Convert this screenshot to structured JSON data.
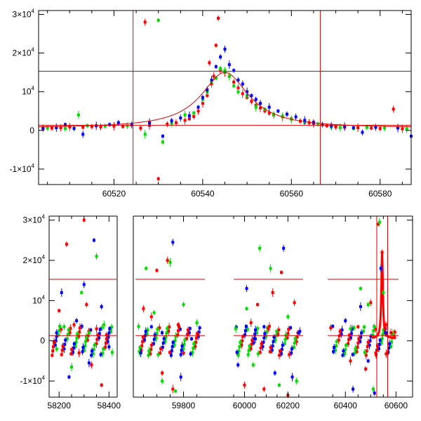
{
  "colors": {
    "red": "#ff0000",
    "green": "#00dd00",
    "blue": "#0000ff",
    "guide": "#dd0000",
    "frame": "#000000"
  },
  "chart_data": [
    {
      "type": "scatter",
      "panel": "top",
      "title": "",
      "xlabel": "",
      "ylabel": "",
      "xlim": [
        60503,
        60587
      ],
      "ylim": [
        -14000,
        31000
      ],
      "x_ticks": [
        60520,
        60540,
        60560,
        60580
      ],
      "x_tick_labels": [
        "60520",
        "60540",
        "60560",
        "60580"
      ],
      "y_ticks": [
        -10000,
        0,
        10000,
        20000,
        30000
      ],
      "y_tick_labels": [
        {
          "base": "-1×10",
          "exp": "4"
        },
        {
          "base": "0",
          "exp": ""
        },
        {
          "base": "10",
          "exp": "4"
        },
        {
          "base": "2×10",
          "exp": "4"
        },
        {
          "base": "3×10",
          "exp": "4"
        }
      ],
      "reference_lines": {
        "horizontal": [
          1300,
          15300
        ],
        "vertical": [
          60524.3,
          60566.5
        ]
      },
      "model_curve": {
        "peak_x": 60545,
        "peak_y": 15000,
        "baseline": 600
      },
      "grid": false,
      "legend": "none",
      "series": [
        {
          "color": "red",
          "points": [
            [
              60504,
              500
            ],
            [
              60506,
              600
            ],
            [
              60508,
              700
            ],
            [
              60510,
              900
            ],
            [
              60513,
              800
            ],
            [
              60515,
              1000
            ],
            [
              60517,
              900
            ],
            [
              60520,
              1100
            ],
            [
              60522,
              1000
            ],
            [
              60526,
              600
            ],
            [
              60527,
              28000
            ],
            [
              60528,
              1300
            ],
            [
              60530,
              -12500
            ],
            [
              60532,
              1600
            ],
            [
              60534,
              2000
            ],
            [
              60536,
              2600
            ],
            [
              60537,
              3000
            ],
            [
              60538,
              3600
            ],
            [
              60539,
              5000
            ],
            [
              60540,
              7000
            ],
            [
              60541,
              9000
            ],
            [
              60541.5,
              17500
            ],
            [
              60542,
              12000
            ],
            [
              60542.5,
              14000
            ],
            [
              60543,
              22000
            ],
            [
              60543.5,
              29000
            ],
            [
              60544,
              15500
            ],
            [
              60545,
              15000
            ],
            [
              60546,
              14000
            ],
            [
              60547,
              12500
            ],
            [
              60548,
              11000
            ],
            [
              60549,
              9500
            ],
            [
              60550,
              8500
            ],
            [
              60551,
              7500
            ],
            [
              60552,
              6500
            ],
            [
              60553,
              5800
            ],
            [
              60554,
              5000
            ],
            [
              60555,
              4500
            ],
            [
              60556,
              4000
            ],
            [
              60558,
              3500
            ],
            [
              60560,
              3000
            ],
            [
              60562,
              2400
            ],
            [
              60564,
              2000
            ],
            [
              60565,
              1800
            ],
            [
              60568,
              1200
            ],
            [
              60570,
              900
            ],
            [
              60572,
              800
            ],
            [
              60575,
              700
            ],
            [
              60578,
              600
            ],
            [
              60580,
              500
            ],
            [
              60583,
              5500
            ],
            [
              60585,
              400
            ]
          ]
        },
        {
          "color": "green",
          "points": [
            [
              60505,
              600
            ],
            [
              60509,
              500
            ],
            [
              60512,
              4000
            ],
            [
              60514,
              1200
            ],
            [
              60518,
              1100
            ],
            [
              60523,
              1200
            ],
            [
              60527,
              -1000
            ],
            [
              60530,
              28500
            ],
            [
              60531,
              -3000
            ],
            [
              60533,
              1800
            ],
            [
              60536,
              4000
            ],
            [
              60538,
              4500
            ],
            [
              60540,
              8000
            ],
            [
              60541,
              10000
            ],
            [
              60542,
              12500
            ],
            [
              60543,
              13500
            ],
            [
              60544,
              16000
            ],
            [
              60545,
              15500
            ],
            [
              60546,
              14000
            ],
            [
              60547,
              11500
            ],
            [
              60548,
              10000
            ],
            [
              60550,
              9000
            ],
            [
              60552,
              6000
            ],
            [
              60554,
              5500
            ],
            [
              60556,
              4200
            ],
            [
              60558,
              3700
            ],
            [
              60560,
              2800
            ],
            [
              60563,
              2000
            ],
            [
              60566,
              1600
            ],
            [
              60569,
              900
            ],
            [
              60571,
              700
            ],
            [
              60574,
              500
            ],
            [
              60577,
              800
            ],
            [
              60581,
              600
            ],
            [
              60586,
              400
            ]
          ]
        },
        {
          "color": "blue",
          "points": [
            [
              60504,
              600
            ],
            [
              60507,
              700
            ],
            [
              60509,
              1500
            ],
            [
              60511,
              500
            ],
            [
              60513,
              -1000
            ],
            [
              60516,
              1200
            ],
            [
              60519,
              1500
            ],
            [
              60521,
              2000
            ],
            [
              60524,
              1400
            ],
            [
              60528,
              2000
            ],
            [
              60531,
              -1500
            ],
            [
              60533,
              2500
            ],
            [
              60535,
              3200
            ],
            [
              60537,
              3800
            ],
            [
              60539,
              6000
            ],
            [
              60540,
              8500
            ],
            [
              60541,
              10500
            ],
            [
              60542,
              13000
            ],
            [
              60543,
              16500
            ],
            [
              60544,
              19000
            ],
            [
              60545,
              21000
            ],
            [
              60546,
              17000
            ],
            [
              60547,
              15500
            ],
            [
              60548,
              13000
            ],
            [
              60549,
              12000
            ],
            [
              60550,
              10000
            ],
            [
              60551,
              9000
            ],
            [
              60552,
              8000
            ],
            [
              60553,
              7000
            ],
            [
              60555,
              6000
            ],
            [
              60557,
              5000
            ],
            [
              60559,
              4200
            ],
            [
              60561,
              3500
            ],
            [
              60563,
              2600
            ],
            [
              60565,
              2100
            ],
            [
              60567,
              1500
            ],
            [
              60569,
              1200
            ],
            [
              60572,
              1000
            ],
            [
              60574,
              700
            ],
            [
              60576,
              -500
            ],
            [
              60579,
              800
            ],
            [
              60584,
              600
            ],
            [
              60587,
              -1500
            ]
          ]
        }
      ]
    },
    {
      "type": "scatter",
      "panel": "bottom",
      "title": "",
      "xlabel": "",
      "ylabel": "",
      "axis_break": "broken x axis with gaps",
      "segments": [
        {
          "xlim": [
            58160,
            58430
          ]
        },
        {
          "xlim": [
            59620,
            59880
          ]
        },
        {
          "xlim": [
            59950,
            60270
          ]
        },
        {
          "xlim": [
            60330,
            60610
          ]
        }
      ],
      "ylim": [
        -14000,
        31000
      ],
      "x_ticks": [
        58200,
        58400,
        59800,
        60000,
        60200,
        60400,
        60600
      ],
      "x_tick_labels": [
        "58200",
        "58400",
        "59800",
        "60000",
        "60200",
        "60400",
        "60600"
      ],
      "y_ticks": [
        -10000,
        0,
        10000,
        20000,
        30000
      ],
      "y_tick_labels": [
        {
          "base": "-1×10",
          "exp": "4"
        },
        {
          "base": "0",
          "exp": ""
        },
        {
          "base": "10",
          "exp": "4"
        },
        {
          "base": "2×10",
          "exp": "4"
        },
        {
          "base": "3×10",
          "exp": "4"
        }
      ],
      "reference_lines": {
        "horizontal": [
          1300,
          15300
        ],
        "vertical": [
          60524,
          60567
        ]
      },
      "event_peak": {
        "x": 60545,
        "y": 22000
      },
      "grid": false,
      "legend": "none",
      "series": [
        {
          "color": "red",
          "points": [
            [
              58200,
              7500
            ],
            [
              58230,
              24000
            ],
            [
              58260,
              4000
            ],
            [
              58280,
              -3000
            ],
            [
              58300,
              30000
            ],
            [
              58310,
              9000
            ],
            [
              58330,
              -6000
            ],
            [
              58350,
              3000
            ],
            [
              58370,
              -11000
            ],
            [
              58390,
              1500
            ],
            [
              59650,
              8000
            ],
            [
              59680,
              6000
            ],
            [
              59700,
              17500
            ],
            [
              59720,
              -8000
            ],
            [
              59740,
              20000
            ],
            [
              59760,
              -12000
            ],
            [
              59780,
              4000
            ],
            [
              59800,
              -3000
            ],
            [
              60000,
              -11000
            ],
            [
              60030,
              4500
            ],
            [
              60060,
              9000
            ],
            [
              60090,
              -12000
            ],
            [
              60110,
              3000
            ],
            [
              60130,
              12000
            ],
            [
              60170,
              17000
            ],
            [
              60200,
              -13500
            ],
            [
              60230,
              9500
            ],
            [
              60420,
              -5000
            ],
            [
              60450,
              3500
            ],
            [
              60480,
              -7000
            ],
            [
              60500,
              9500
            ],
            [
              60520,
              -3000
            ],
            [
              60530,
              29000
            ],
            [
              60545,
              22000
            ],
            [
              60560,
              4000
            ],
            [
              60580,
              2000
            ]
          ]
        },
        {
          "color": "green",
          "points": [
            [
              58190,
              -2000
            ],
            [
              58220,
              3500
            ],
            [
              58250,
              -6500
            ],
            [
              58290,
              12000
            ],
            [
              58320,
              2000
            ],
            [
              58350,
              21000
            ],
            [
              58380,
              4000
            ],
            [
              59660,
              18000
            ],
            [
              59690,
              7000
            ],
            [
              59720,
              -10000
            ],
            [
              59750,
              19500
            ],
            [
              59770,
              -12500
            ],
            [
              59800,
              9000
            ],
            [
              59850,
              4500
            ],
            [
              59960,
              3000
            ],
            [
              60010,
              8000
            ],
            [
              60040,
              -6000
            ],
            [
              60070,
              23000
            ],
            [
              60120,
              18000
            ],
            [
              60160,
              -11000
            ],
            [
              60200,
              6000
            ],
            [
              60240,
              -10000
            ],
            [
              60420,
              3000
            ],
            [
              60460,
              13000
            ],
            [
              60490,
              9000
            ],
            [
              60510,
              -12000
            ],
            [
              60535,
              29500
            ],
            [
              60550,
              12000
            ]
          ]
        },
        {
          "color": "blue",
          "points": [
            [
              58190,
              2000
            ],
            [
              58210,
              12000
            ],
            [
              58240,
              -9000
            ],
            [
              58270,
              5000
            ],
            [
              58300,
              14000
            ],
            [
              58320,
              -5500
            ],
            [
              58340,
              25000
            ],
            [
              58370,
              8500
            ],
            [
              58400,
              -1500
            ],
            [
              59640,
              -3000
            ],
            [
              59680,
              3500
            ],
            [
              59720,
              2000
            ],
            [
              59760,
              24500
            ],
            [
              59790,
              -9000
            ],
            [
              59830,
              500
            ],
            [
              59970,
              -6000
            ],
            [
              60010,
              13000
            ],
            [
              60050,
              500
            ],
            [
              60090,
              3500
            ],
            [
              60140,
              -8000
            ],
            [
              60180,
              23000
            ],
            [
              60220,
              -9000
            ],
            [
              60250,
              2000
            ],
            [
              60400,
              5000
            ],
            [
              60430,
              -12000
            ],
            [
              60460,
              8500
            ],
            [
              60490,
              -5000
            ],
            [
              60515,
              -13000
            ],
            [
              60540,
              18000
            ],
            [
              60560,
              2000
            ]
          ]
        }
      ]
    }
  ]
}
